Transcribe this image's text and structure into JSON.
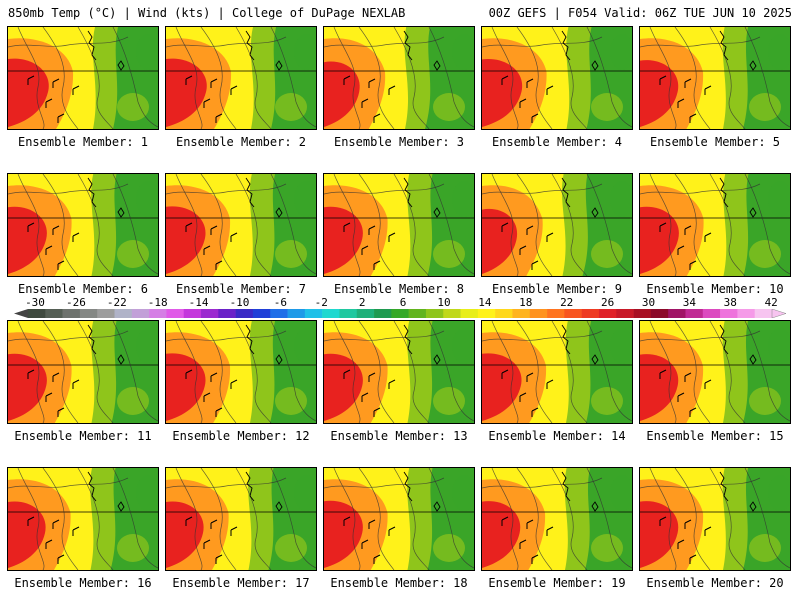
{
  "header": {
    "left": "850mb Temp (°C) | Wind (kts) | College of DuPage NEXLAB",
    "right": "00Z GEFS | F054 Valid: 06Z TUE JUN 10 2025"
  },
  "members": [
    {
      "label": "Ensemble Member: 1",
      "heat": 1.0
    },
    {
      "label": "Ensemble Member: 2",
      "heat": 1.0
    },
    {
      "label": "Ensemble Member: 3",
      "heat": 0.6
    },
    {
      "label": "Ensemble Member: 4",
      "heat": 0.95
    },
    {
      "label": "Ensemble Member: 5",
      "heat": 0.8
    },
    {
      "label": "Ensemble Member: 6",
      "heat": 0.85
    },
    {
      "label": "Ensemble Member: 7",
      "heat": 0.9
    },
    {
      "label": "Ensemble Member: 8",
      "heat": 0.85
    },
    {
      "label": "Ensemble Member: 9",
      "heat": 0.55
    },
    {
      "label": "Ensemble Member: 10",
      "heat": 0.85
    },
    {
      "label": "Ensemble Member: 11",
      "heat": 0.85
    },
    {
      "label": "Ensemble Member: 12",
      "heat": 0.9
    },
    {
      "label": "Ensemble Member: 13",
      "heat": 0.85
    },
    {
      "label": "Ensemble Member: 14",
      "heat": 0.9
    },
    {
      "label": "Ensemble Member: 15",
      "heat": 0.8
    },
    {
      "label": "Ensemble Member: 16",
      "heat": 0.75
    },
    {
      "label": "Ensemble Member: 17",
      "heat": 0.75
    },
    {
      "label": "Ensemble Member: 18",
      "heat": 0.85
    },
    {
      "label": "Ensemble Member: 19",
      "heat": 0.8
    },
    {
      "label": "Ensemble Member: 20",
      "heat": 0.8
    }
  ],
  "colorbar": {
    "ticks": [
      "-30",
      "-26",
      "-22",
      "-18",
      "-14",
      "-10",
      "-6",
      "-2",
      "2",
      "6",
      "10",
      "14",
      "18",
      "22",
      "26",
      "30",
      "34",
      "38",
      "42"
    ],
    "colors": [
      "#3f4a3f",
      "#555f55",
      "#6e736e",
      "#858885",
      "#9d9d9d",
      "#b0b3c8",
      "#c2a0d8",
      "#d57ee5",
      "#e05ae8",
      "#c438dc",
      "#9b2bd0",
      "#6a22c8",
      "#3a2ac6",
      "#2040d8",
      "#1f6fe8",
      "#1f9ae8",
      "#20c0e8",
      "#20d8d0",
      "#20c8a0",
      "#1fb07a",
      "#1f9a50",
      "#35a828",
      "#62b41e",
      "#8fc51b",
      "#c0d81a",
      "#e8ee1a",
      "#fff21a",
      "#ffd81c",
      "#ffb41f",
      "#ff9320",
      "#ff7420",
      "#f85520",
      "#ee3b22",
      "#e02228",
      "#c81a28",
      "#a81024",
      "#8c0a2a",
      "#a01466",
      "#c02a94",
      "#dc4ac0",
      "#ee73dc",
      "#f59ae8",
      "#f7c4f0"
    ],
    "units": "°C"
  },
  "legend_colors": {
    "hot": "#e8221f",
    "warm": "#ff9a1f",
    "mild": "#fff21a",
    "cool": "#8fc51b",
    "cold": "#3aa528"
  }
}
